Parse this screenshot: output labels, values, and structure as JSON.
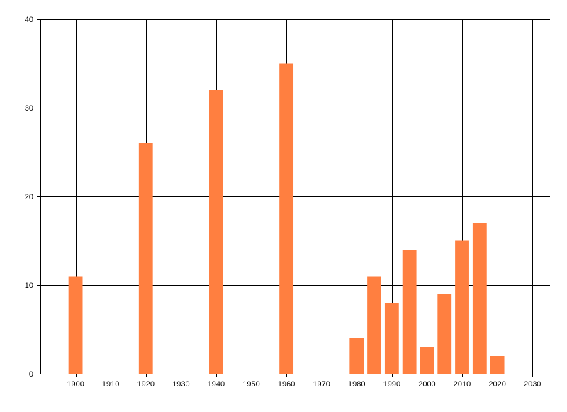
{
  "chart_data": {
    "type": "bar",
    "title": "",
    "xlabel": "",
    "ylabel": "",
    "x": [
      1900,
      1920,
      1940,
      1960,
      1980,
      1985,
      1990,
      1995,
      2000,
      2005,
      2010,
      2015,
      2020
    ],
    "values": [
      11,
      26,
      32,
      35,
      4,
      11,
      8,
      14,
      3,
      9,
      15,
      17,
      2
    ],
    "xlim": [
      1890,
      2035
    ],
    "ylim": [
      0,
      40
    ],
    "xticks": [
      1900,
      1910,
      1920,
      1930,
      1940,
      1950,
      1960,
      1970,
      1980,
      1990,
      2000,
      2010,
      2020,
      2030
    ],
    "yticks": [
      0,
      10,
      20,
      30,
      40
    ],
    "bar_width_years": 4,
    "grid": true,
    "legend": "none",
    "bar_color": "#ff7f40",
    "axis_color": "#000000"
  }
}
